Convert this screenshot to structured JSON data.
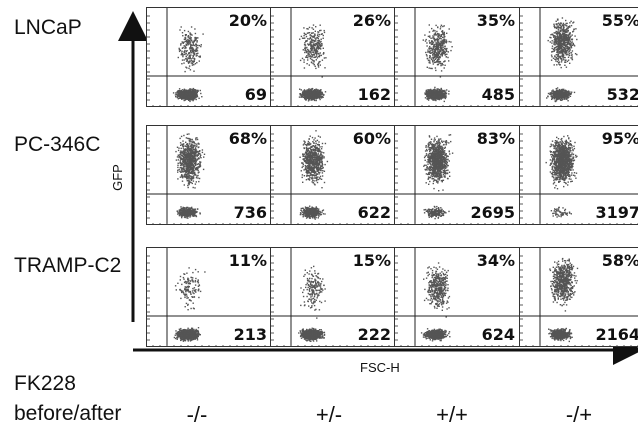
{
  "chart_data": {
    "type": "scatter",
    "y_axis_label": "GFP",
    "x_axis_label": "FSC-H",
    "bottom_title_line1": "FK228",
    "bottom_title_line2": "before/after",
    "conditions": [
      "-/-",
      "+/-",
      "+/+",
      "-/+"
    ],
    "rows": [
      {
        "cell_line": "LNCaP",
        "percent": [
          "20%",
          "26%",
          "35%",
          "55%"
        ],
        "counts": [
          "69",
          "162",
          "485",
          "532"
        ]
      },
      {
        "cell_line": "PC-346C",
        "percent": [
          "68%",
          "60%",
          "83%",
          "95%"
        ],
        "counts": [
          "736",
          "622",
          "2695",
          "3197"
        ]
      },
      {
        "cell_line": "TRAMP-C2",
        "percent": [
          "11%",
          "15%",
          "34%",
          "58%"
        ],
        "counts": [
          "213",
          "222",
          "624",
          "2164"
        ]
      }
    ]
  },
  "colors": {
    "dots": "#555555",
    "frame": "#333333",
    "gate": "#222222"
  }
}
